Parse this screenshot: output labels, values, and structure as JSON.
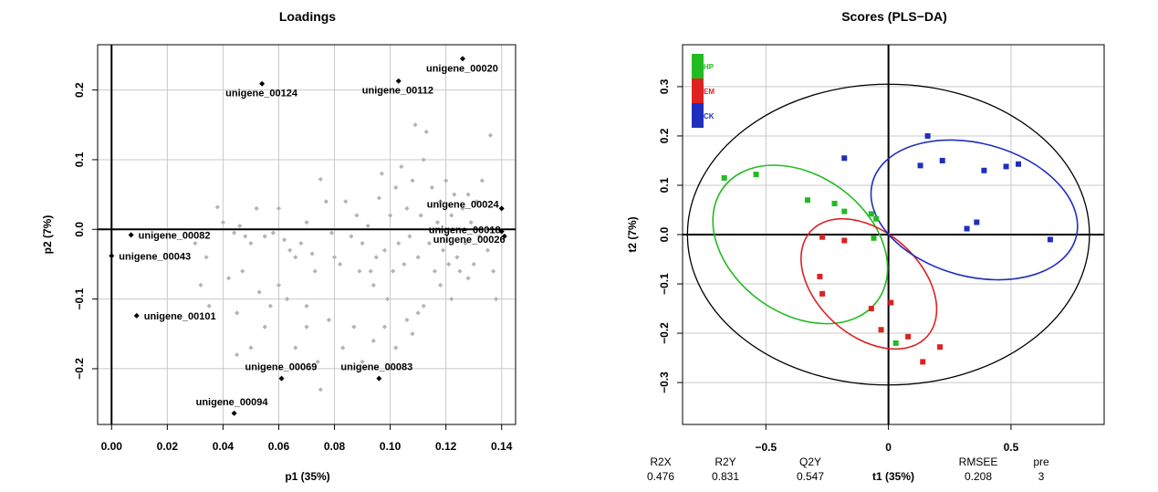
{
  "chart_data": [
    {
      "type": "scatter",
      "title": "Loadings",
      "xlabel": "p1 (35%)",
      "ylabel": "p2 (7%)",
      "xlim": [
        -0.005,
        0.145
      ],
      "ylim": [
        -0.28,
        0.265
      ],
      "x_ticks": [
        0.0,
        0.02,
        0.04,
        0.06,
        0.08,
        0.1,
        0.12,
        0.14
      ],
      "x_tick_labels": [
        "0.00",
        "0.02",
        "0.04",
        "0.06",
        "0.08",
        "0.10",
        "0.12",
        "0.14"
      ],
      "y_ticks": [
        -0.2,
        -0.1,
        0.0,
        0.1,
        0.2
      ],
      "y_tick_labels": [
        "−0.2",
        "−0.1",
        "0.0",
        "0.1",
        "0.2"
      ],
      "grid": true,
      "colors": {
        "labeled": "#000000",
        "unlabeled": "#b4b4b4"
      },
      "labeled_points": [
        {
          "label": "unigene_00020",
          "x": 0.126,
          "y": 0.245
        },
        {
          "label": "unigene_00124",
          "x": 0.054,
          "y": 0.209
        },
        {
          "label": "unigene_00112",
          "x": 0.103,
          "y": 0.213
        },
        {
          "label": "unigene_00024",
          "x": 0.14,
          "y": 0.03
        },
        {
          "label": "unigene_00018",
          "x": 0.14,
          "y": -0.003
        },
        {
          "label": "unigene_00026",
          "x": 0.141,
          "y": -0.01
        },
        {
          "label": "unigene_00082",
          "x": 0.007,
          "y": -0.008
        },
        {
          "label": "unigene_00043",
          "x": 0.0,
          "y": -0.038
        },
        {
          "label": "unigene_00101",
          "x": 0.009,
          "y": -0.124
        },
        {
          "label": "unigene_00069",
          "x": 0.061,
          "y": -0.214
        },
        {
          "label": "unigene_00083",
          "x": 0.096,
          "y": -0.214
        },
        {
          "label": "unigene_00094",
          "x": 0.044,
          "y": -0.264
        }
      ],
      "points": [
        [
          0.038,
          0.032
        ],
        [
          0.052,
          0.03
        ],
        [
          0.04,
          0.01
        ],
        [
          0.046,
          0.005
        ],
        [
          0.048,
          -0.01
        ],
        [
          0.044,
          -0.005
        ],
        [
          0.05,
          -0.02
        ],
        [
          0.055,
          -0.01
        ],
        [
          0.058,
          -0.005
        ],
        [
          0.062,
          -0.015
        ],
        [
          0.064,
          -0.03
        ],
        [
          0.066,
          -0.04
        ],
        [
          0.068,
          -0.02
        ],
        [
          0.07,
          0.01
        ],
        [
          0.072,
          -0.035
        ],
        [
          0.073,
          -0.06
        ],
        [
          0.075,
          0.072
        ],
        [
          0.077,
          0.04
        ],
        [
          0.079,
          -0.005
        ],
        [
          0.08,
          -0.04
        ],
        [
          0.082,
          -0.05
        ],
        [
          0.084,
          0.04
        ],
        [
          0.086,
          -0.01
        ],
        [
          0.088,
          0.02
        ],
        [
          0.089,
          -0.06
        ],
        [
          0.09,
          -0.02
        ],
        [
          0.092,
          0.005
        ],
        [
          0.093,
          -0.06
        ],
        [
          0.094,
          -0.08
        ],
        [
          0.095,
          -0.04
        ],
        [
          0.096,
          0.045
        ],
        [
          0.097,
          0.08
        ],
        [
          0.098,
          -0.03
        ],
        [
          0.099,
          -0.1
        ],
        [
          0.1,
          0.02
        ],
        [
          0.101,
          -0.06
        ],
        [
          0.102,
          0.06
        ],
        [
          0.103,
          -0.02
        ],
        [
          0.104,
          0.09
        ],
        [
          0.105,
          -0.05
        ],
        [
          0.106,
          0.03
        ],
        [
          0.107,
          -0.01
        ],
        [
          0.108,
          0.07
        ],
        [
          0.109,
          0.15
        ],
        [
          0.11,
          -0.04
        ],
        [
          0.111,
          0.02
        ],
        [
          0.112,
          0.1
        ],
        [
          0.113,
          0.14
        ],
        [
          0.114,
          -0.02
        ],
        [
          0.115,
          0.06
        ],
        [
          0.116,
          -0.06
        ],
        [
          0.117,
          0.01
        ],
        [
          0.118,
          0.04
        ],
        [
          0.119,
          -0.03
        ],
        [
          0.12,
          0.07
        ],
        [
          0.121,
          -0.05
        ],
        [
          0.122,
          0.02
        ],
        [
          0.123,
          0.05
        ],
        [
          0.124,
          -0.04
        ],
        [
          0.125,
          -0.06
        ],
        [
          0.126,
          0.03
        ],
        [
          0.127,
          -0.02
        ],
        [
          0.128,
          0.05
        ],
        [
          0.129,
          0.01
        ],
        [
          0.13,
          -0.05
        ],
        [
          0.131,
          0.04
        ],
        [
          0.132,
          -0.01
        ],
        [
          0.133,
          0.07
        ],
        [
          0.134,
          0.0
        ],
        [
          0.135,
          -0.03
        ],
        [
          0.136,
          0.135
        ],
        [
          0.137,
          -0.06
        ],
        [
          0.138,
          -0.1
        ],
        [
          0.03,
          -0.02
        ],
        [
          0.034,
          -0.04
        ],
        [
          0.032,
          -0.08
        ],
        [
          0.035,
          -0.11
        ],
        [
          0.042,
          -0.07
        ],
        [
          0.045,
          -0.12
        ],
        [
          0.047,
          -0.06
        ],
        [
          0.053,
          -0.09
        ],
        [
          0.055,
          -0.14
        ],
        [
          0.057,
          -0.11
        ],
        [
          0.06,
          -0.08
        ],
        [
          0.063,
          -0.1
        ],
        [
          0.066,
          -0.17
        ],
        [
          0.07,
          -0.14
        ],
        [
          0.074,
          -0.19
        ],
        [
          0.078,
          -0.13
        ],
        [
          0.083,
          -0.17
        ],
        [
          0.087,
          -0.14
        ],
        [
          0.09,
          -0.19
        ],
        [
          0.094,
          -0.16
        ],
        [
          0.098,
          -0.14
        ],
        [
          0.102,
          -0.17
        ],
        [
          0.106,
          -0.13
        ],
        [
          0.108,
          -0.15
        ],
        [
          0.112,
          -0.11
        ],
        [
          0.118,
          -0.08
        ],
        [
          0.122,
          -0.1
        ],
        [
          0.128,
          -0.07
        ],
        [
          0.06,
          0.03
        ],
        [
          0.05,
          -0.17
        ],
        [
          0.045,
          -0.18
        ],
        [
          0.07,
          -0.11
        ],
        [
          0.075,
          -0.23
        ],
        [
          0.1,
          -0.2
        ],
        [
          0.11,
          -0.12
        ]
      ]
    },
    {
      "type": "scatter",
      "title": "Scores (PLS−DA)",
      "xlabel": "t1 (35%)",
      "ylabel": "t2 (7%)",
      "xlim": [
        -0.84,
        0.88
      ],
      "ylim": [
        -0.385,
        0.385
      ],
      "x_ticks": [
        -0.5,
        0.0,
        0.5
      ],
      "x_tick_labels": [
        "−0.5",
        "0",
        "0.5"
      ],
      "y_ticks": [
        -0.3,
        -0.2,
        -0.1,
        0.0,
        0.1,
        0.2,
        0.3
      ],
      "y_tick_labels": [
        "−0.3",
        "−0.2",
        "−0.1",
        "0.0",
        "0.1",
        "0.2",
        "0.3"
      ],
      "grid": true,
      "legend_position": "top-left",
      "series": [
        {
          "name": "HP",
          "color": "#22bb22",
          "points": [
            [
              -0.67,
              0.115
            ],
            [
              -0.54,
              0.122
            ],
            [
              -0.33,
              0.07
            ],
            [
              -0.22,
              0.063
            ],
            [
              -0.18,
              0.047
            ],
            [
              -0.07,
              0.042
            ],
            [
              -0.05,
              0.032
            ],
            [
              -0.06,
              -0.007
            ],
            [
              0.03,
              -0.22
            ]
          ]
        },
        {
          "name": "EM",
          "color": "#dd2222",
          "points": [
            [
              -0.27,
              -0.005
            ],
            [
              -0.18,
              -0.012
            ],
            [
              -0.28,
              -0.085
            ],
            [
              -0.27,
              -0.12
            ],
            [
              -0.07,
              -0.15
            ],
            [
              0.01,
              -0.138
            ],
            [
              -0.03,
              -0.193
            ],
            [
              0.08,
              -0.207
            ],
            [
              0.14,
              -0.258
            ],
            [
              0.21,
              -0.228
            ]
          ]
        },
        {
          "name": "CK",
          "color": "#1f2fbb",
          "points": [
            [
              -0.18,
              0.155
            ],
            [
              0.16,
              0.2
            ],
            [
              0.13,
              0.14
            ],
            [
              0.22,
              0.15
            ],
            [
              0.39,
              0.13
            ],
            [
              0.48,
              0.138
            ],
            [
              0.53,
              0.143
            ],
            [
              0.36,
              0.025
            ],
            [
              0.32,
              0.012
            ],
            [
              0.66,
              -0.01
            ]
          ]
        }
      ],
      "stats": {
        "headers": [
          "R2X",
          "R2Y",
          "Q2Y",
          "RMSEE",
          "pre"
        ],
        "values": [
          "0.476",
          "0.831",
          "0.547",
          "0.208",
          "3"
        ]
      }
    }
  ]
}
